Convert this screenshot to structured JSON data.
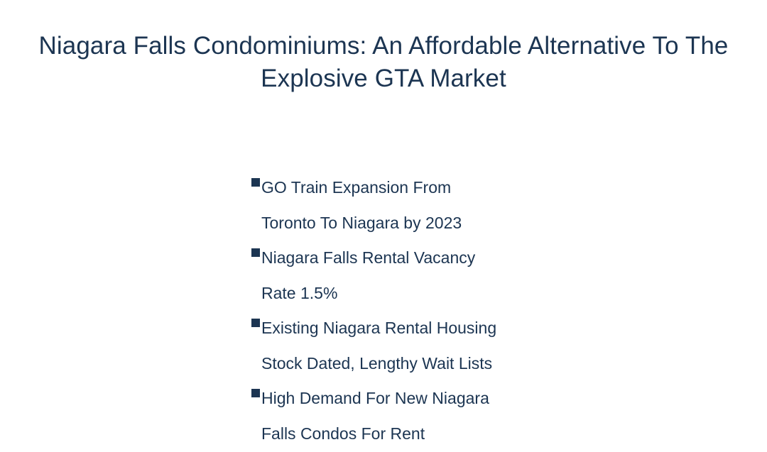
{
  "page": {
    "title_lines": [
      "Niagara Falls Condominiums: An Affordable Alternative To The",
      "Explosive GTA Market"
    ]
  },
  "bullets": [
    {
      "line1": "GO Train Expansion From",
      "line2": "Toronto To Niagara by 2023"
    },
    {
      "line1": "Niagara Falls Rental Vacancy",
      "line2": "Rate 1.5%"
    },
    {
      "line1": "Existing Niagara Rental Housing",
      "line2": "Stock Dated, Lengthy Wait Lists"
    },
    {
      "line1": "High Demand For New Niagara",
      "line2": "Falls Condos For Rent"
    }
  ],
  "colors": {
    "text": "#1c3552",
    "bullet": "#1c3552",
    "background": "#ffffff"
  },
  "icons": {
    "bullet": "square-bullet-icon"
  }
}
